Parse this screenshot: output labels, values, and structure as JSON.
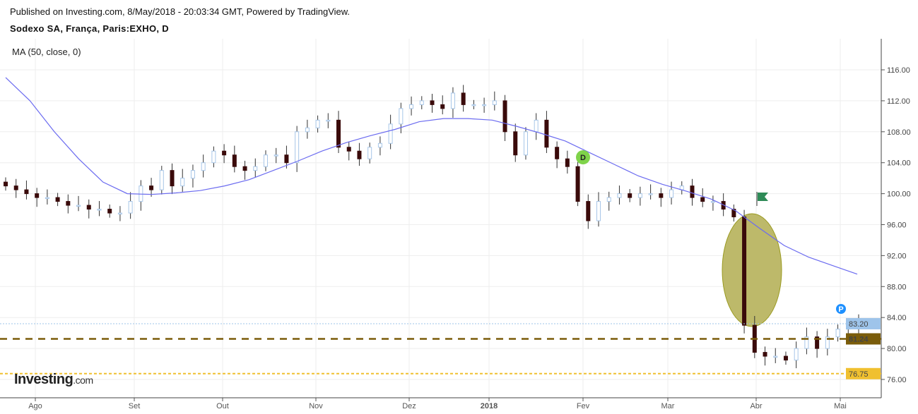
{
  "header": {
    "published": "Published on Investing.com, 8/May/2018 - 20:03:34 GMT, Powered by TradingView.",
    "symbol": "Sodexo SA, França, Paris:EXHO, D"
  },
  "indicator": {
    "label": "MA (50, close, 0)"
  },
  "logo": {
    "main": "Investing",
    "suffix": ".com"
  },
  "colors": {
    "up": "#a7c6e8",
    "down": "#3a0a0a",
    "ma": "#6b6bf0",
    "grid": "#eeeeee",
    "level_blue": "#9ec4ea",
    "level_brown": "#7a5c0a",
    "level_yellow": "#f0c030",
    "ellipse": "#bdb96a",
    "marker_d": "#7fd34a",
    "marker_p": "#1e90ff",
    "flag": "#2e8b57"
  },
  "chart_data": {
    "type": "candlestick",
    "title": "Sodexo SA, França, Paris:EXHO, D",
    "ylim": [
      74,
      118
    ],
    "y_ticks": [
      "116.00",
      "112.00",
      "108.00",
      "104.00",
      "100.00",
      "96.00",
      "92.00",
      "88.00",
      "84.00",
      "80.00",
      "76.00"
    ],
    "y_tick_values": [
      116,
      112,
      108,
      104,
      100,
      96,
      92,
      88,
      84,
      80,
      76
    ],
    "x_ticks": [
      "Ago",
      "Set",
      "Out",
      "Nov",
      "Dez",
      "2018",
      "Fev",
      "Mar",
      "Abr",
      "Mai"
    ],
    "closes": [
      101,
      100.5,
      100,
      99.5,
      99.5,
      99,
      98.5,
      98.5,
      98,
      98,
      97.5,
      97.5,
      99,
      101,
      100.5,
      103,
      101,
      102,
      103,
      104,
      105.5,
      105,
      103.5,
      103,
      103.5,
      105,
      105,
      104,
      108,
      108.5,
      109.5,
      109.5,
      106,
      105.5,
      104.5,
      106,
      106.5,
      109,
      111,
      111.5,
      112,
      111.5,
      111,
      113,
      111.5,
      111.5,
      111.5,
      112,
      108,
      105,
      108,
      109.5,
      106,
      104.5,
      103.5,
      99,
      96.5,
      99,
      99.5,
      100,
      99.5,
      100,
      100,
      99.5,
      100.5,
      101,
      99.5,
      99,
      99,
      98,
      97,
      83,
      79.5,
      79,
      79,
      78.5,
      80,
      81.5,
      80,
      81.5,
      82.5,
      82.7,
      83.2
    ],
    "ma50": [
      115,
      112,
      108,
      104.5,
      101.5,
      100,
      99.9,
      100.1,
      100.4,
      101,
      101.8,
      103,
      104.2,
      105.5,
      106.6,
      107.5,
      108.3,
      109.3,
      109.7,
      109.7,
      109.5,
      108.7,
      107.8,
      106.8,
      105.3,
      103.8,
      102.3,
      101.2,
      100.3,
      99.3,
      97.8,
      95.5,
      93.3,
      91.8,
      90.7,
      89.6
    ],
    "levels": [
      {
        "value": 83.2,
        "label": "83.20",
        "style": "dotted"
      },
      {
        "value": 81.24,
        "label": "81.24",
        "style": "dashed"
      },
      {
        "value": 76.75,
        "label": "76.75",
        "style": "dashed"
      }
    ],
    "markers": [
      {
        "label": "D",
        "price": 104
      },
      {
        "label": "P",
        "price": 85
      }
    ]
  }
}
